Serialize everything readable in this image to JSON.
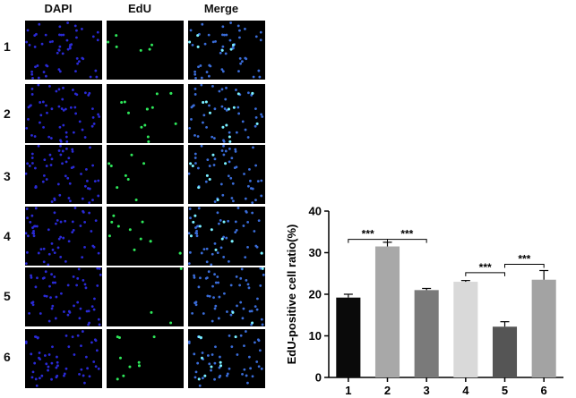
{
  "figure": {
    "columns": [
      "DAPI",
      "EdU",
      "Merge"
    ],
    "rows": [
      "1",
      "2",
      "3",
      "4",
      "5",
      "6"
    ],
    "colors": {
      "dapi": "#2a2ad6",
      "edu": "#2ee85a",
      "merge_cell": "#3a6cd8",
      "panel_bg": "#000000"
    }
  },
  "chart_data": {
    "type": "bar",
    "categories": [
      "1",
      "2",
      "3",
      "4",
      "5",
      "6"
    ],
    "values": [
      19.2,
      31.5,
      21.0,
      23.0,
      12.2,
      23.5
    ],
    "errors": [
      0.8,
      1.0,
      0.4,
      0.3,
      1.2,
      2.2
    ],
    "bar_colors": [
      "#0a0a0a",
      "#a8a8a8",
      "#7a7a7a",
      "#d9d9d9",
      "#555555",
      "#a3a3a3"
    ],
    "ylabel": "EdU-positive cell ratio(%)",
    "ylim": [
      0,
      40
    ],
    "yticks": [
      0,
      10,
      20,
      30,
      40
    ],
    "significance": [
      {
        "from": "1",
        "to": "2",
        "label": "***",
        "y": 33.2
      },
      {
        "from": "2",
        "to": "3",
        "label": "***",
        "y": 33.2
      },
      {
        "from": "4",
        "to": "5",
        "label": "***",
        "y": 25.2
      },
      {
        "from": "5",
        "to": "6",
        "label": "***",
        "y": 27.2
      }
    ],
    "grid": false
  }
}
